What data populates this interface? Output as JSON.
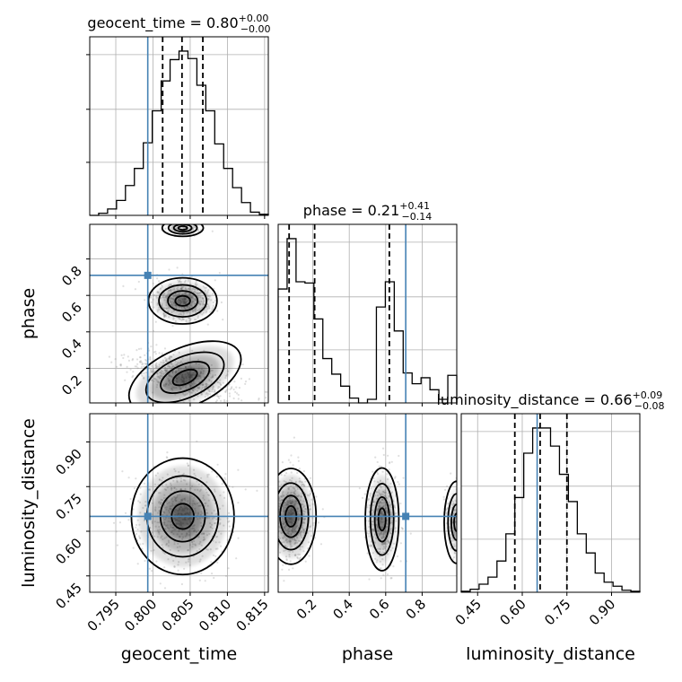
{
  "chart_data": {
    "type": "corner",
    "parameters": [
      {
        "name": "geocent_time",
        "axis_label": "geocent_time",
        "range": [
          0.7915,
          0.8155
        ],
        "ticks": [
          0.795,
          0.8,
          0.805,
          0.81,
          0.815
        ],
        "tick_labels": [
          "0.795",
          "0.800",
          "0.805",
          "0.810",
          "0.815"
        ],
        "title": {
          "main": "geocent_time = 0.80",
          "sup": "+0.00",
          "sub": "−0.00"
        },
        "median": 0.8039,
        "quantiles": [
          0.8013,
          0.8039,
          0.8067
        ],
        "truth": 0.7993,
        "histogram": {
          "edges": [
            0.7915,
            0.7927,
            0.7939,
            0.7951,
            0.7963,
            0.7975,
            0.7987,
            0.7999,
            0.8011,
            0.8023,
            0.8035,
            0.8047,
            0.8059,
            0.8071,
            0.8083,
            0.8095,
            0.8107,
            0.8119,
            0.8131,
            0.8143,
            0.8155
          ],
          "counts": [
            0,
            2,
            6,
            14,
            28,
            44,
            68,
            98,
            126,
            146,
            154,
            147,
            122,
            98,
            67,
            44,
            26,
            12,
            3,
            1
          ]
        }
      },
      {
        "name": "phase",
        "axis_label": "phase",
        "range": [
          0.01,
          0.99
        ],
        "ticks": [
          0.2,
          0.4,
          0.6,
          0.8
        ],
        "tick_labels": [
          "0.2",
          "0.4",
          "0.6",
          "0.8"
        ],
        "title": {
          "main": "phase = 0.21",
          "sup": "+0.41",
          "sub": "−0.14"
        },
        "median": 0.21,
        "quantiles": [
          0.07,
          0.21,
          0.62
        ],
        "truth": 0.71,
        "histogram": {
          "edges": [
            0.01,
            0.059,
            0.108,
            0.157,
            0.206,
            0.255,
            0.304,
            0.353,
            0.402,
            0.451,
            0.5,
            0.549,
            0.598,
            0.647,
            0.696,
            0.745,
            0.794,
            0.843,
            0.892,
            0.941,
            0.99
          ],
          "counts": [
            95,
            137,
            101,
            100,
            70,
            37,
            24,
            14,
            4,
            0,
            3,
            80,
            101,
            60,
            25,
            16,
            21,
            11,
            3,
            23
          ]
        }
      },
      {
        "name": "luminosity_distance",
        "axis_label": "luminosity_distance",
        "range": [
          0.395,
          0.995
        ],
        "ticks": [
          0.45,
          0.6,
          0.75,
          0.9
        ],
        "tick_labels": [
          "0.45",
          "0.60",
          "0.75",
          "0.90"
        ],
        "title": {
          "main": "luminosity_distance = 0.66",
          "sup": "+0.09",
          "sub": "−0.08"
        },
        "median": 0.66,
        "quantiles": [
          0.575,
          0.66,
          0.75
        ],
        "truth": 0.65,
        "histogram": {
          "edges": [
            0.395,
            0.425,
            0.455,
            0.485,
            0.515,
            0.545,
            0.575,
            0.605,
            0.635,
            0.665,
            0.695,
            0.725,
            0.755,
            0.785,
            0.815,
            0.845,
            0.875,
            0.905,
            0.935,
            0.965,
            0.995
          ],
          "counts": [
            1,
            3,
            8,
            15,
            31,
            58,
            94,
            138,
            163,
            163,
            145,
            117,
            90,
            58,
            39,
            19,
            10,
            6,
            2,
            1
          ]
        }
      }
    ],
    "panels_2d": [
      {
        "x": "geocent_time",
        "y": "phase",
        "modes": [
          {
            "center": [
              0.804,
              0.57
            ],
            "sigma": [
              0.002,
              0.055
            ],
            "weight": 0.85
          },
          {
            "center": [
              0.8043,
              0.15
            ],
            "sigma": [
              0.0035,
              0.07
            ],
            "rho": -0.6,
            "weight": 1.0
          },
          {
            "center": [
              0.804,
              0.97
            ],
            "sigma": [
              0.0012,
              0.02
            ],
            "weight": 0.25
          }
        ]
      },
      {
        "x": "geocent_time",
        "y": "luminosity_distance",
        "modes": [
          {
            "center": [
              0.804,
              0.65
            ],
            "sigma": [
              0.003,
              0.085
            ],
            "weight": 1.0
          }
        ]
      },
      {
        "x": "phase",
        "y": "luminosity_distance",
        "modes": [
          {
            "center": [
              0.08,
              0.65
            ],
            "sigma": [
              0.06,
              0.07
            ],
            "weight": 1.0
          },
          {
            "center": [
              0.58,
              0.64
            ],
            "sigma": [
              0.04,
              0.075
            ],
            "weight": 0.8
          },
          {
            "center": [
              0.99,
              0.63
            ],
            "sigma": [
              0.03,
              0.06
            ],
            "weight": 0.4
          }
        ]
      }
    ],
    "quantile_levels": [
      0.16,
      0.5,
      0.84
    ],
    "truth_color": "#4682b4",
    "hist_color": "#000000",
    "grid": true
  }
}
